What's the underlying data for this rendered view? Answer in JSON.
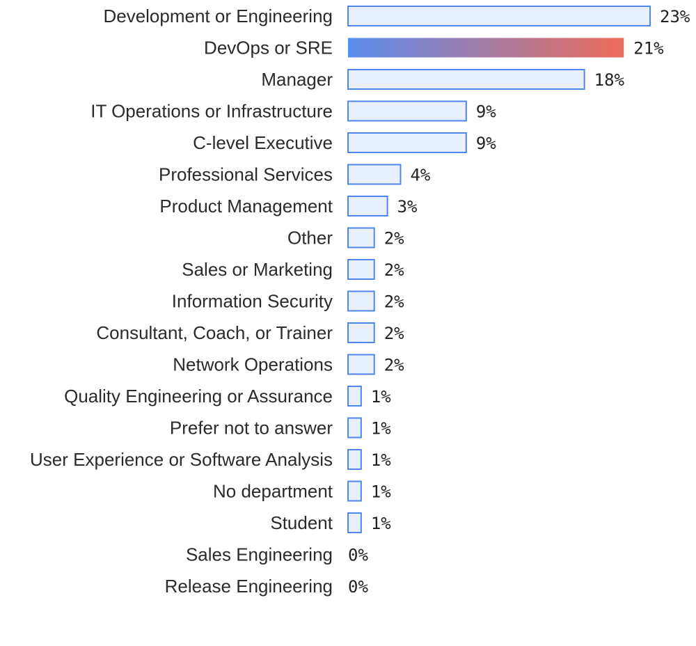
{
  "chart_data": {
    "type": "bar",
    "orientation": "horizontal",
    "title": "",
    "xlabel": "",
    "ylabel": "",
    "grid": false,
    "categories": [
      "Development or Engineering",
      "DevOps or SRE",
      "Manager",
      "IT Operations or Infrastructure",
      "C-level Executive",
      "Professional Services",
      "Product Management",
      "Other",
      "Sales or Marketing",
      "Information Security",
      "Consultant, Coach, or Trainer",
      "Network Operations",
      "Quality Engineering or Assurance",
      "Prefer not to answer",
      "User Experience or Software Analysis",
      "No department",
      "Student",
      "Sales Engineering",
      "Release Engineering"
    ],
    "values": [
      23,
      21,
      18,
      9,
      9,
      4,
      3,
      2,
      2,
      2,
      2,
      2,
      1,
      1,
      1,
      1,
      1,
      0,
      0
    ],
    "value_labels": [
      "23%",
      "21%",
      "18%",
      "9%",
      "9%",
      "4%",
      "3%",
      "2%",
      "2%",
      "2%",
      "2%",
      "2%",
      "1%",
      "1%",
      "1%",
      "1%",
      "1%",
      "0%",
      "0%"
    ],
    "highlighted_category": "DevOps or SRE",
    "colors": {
      "bar_fill": "#e8f0fd",
      "bar_stroke": "#4f86f0",
      "highlight_gradient_start": "#5b8def",
      "highlight_gradient_end": "#ee6b5a",
      "label_text": "#2b2b2b"
    }
  }
}
